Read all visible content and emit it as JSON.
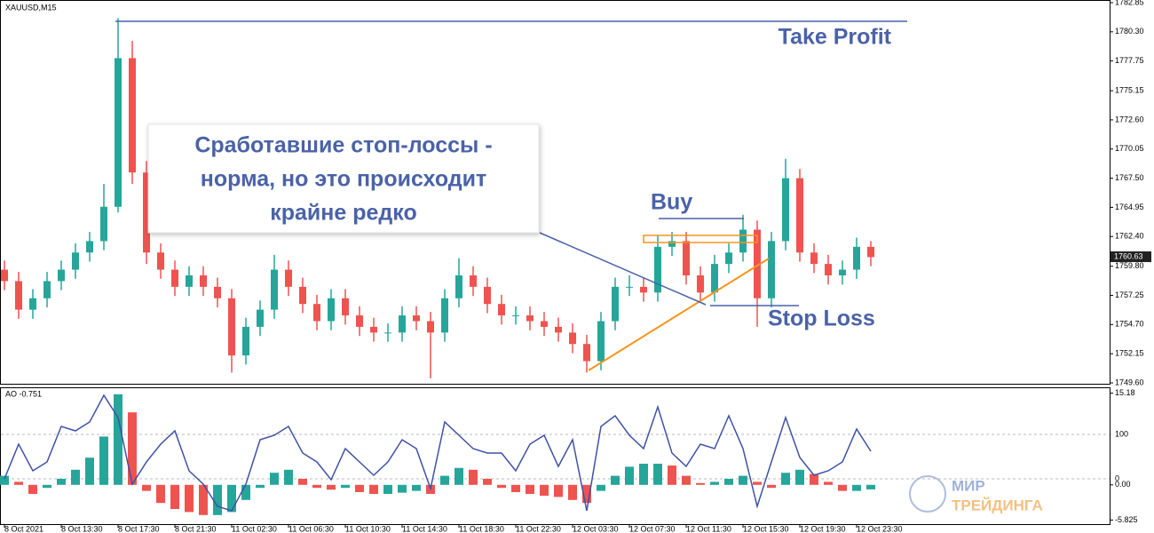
{
  "chart_data": {
    "type": "candlestick",
    "symbol": "XAUUSD,M15",
    "categories": [
      "8 Oct 2021",
      null,
      null,
      null,
      "8 Oct 13:30",
      null,
      null,
      null,
      "8 Oct 17:30",
      null,
      null,
      null,
      "8 Oct 21:30",
      null,
      null,
      null,
      "11 Oct 02:30",
      null,
      null,
      null,
      "11 Oct 06:30",
      null,
      null,
      null,
      "11 Oct 10:30",
      null,
      null,
      null,
      "11 Oct 14:30",
      null,
      null,
      null,
      "11 Oct 18:30",
      null,
      null,
      null,
      "11 Oct 22:30",
      null,
      null,
      null,
      "12 Oct 03:30",
      null,
      null,
      null,
      "12 Oct 07:30",
      null,
      null,
      null,
      "12 Oct 11:30",
      null,
      null,
      null,
      "12 Oct 15:30",
      null,
      null,
      null,
      "12 Oct 19:30",
      null,
      null,
      null,
      "12 Oct 23:30",
      null
    ],
    "open": [
      1759.5,
      1758.5,
      1756,
      1757,
      1758.5,
      1759.5,
      1761,
      1762,
      1765,
      1778,
      1768,
      1761,
      1759.5,
      1758,
      1759,
      1758,
      1757,
      1752,
      1754.5,
      1756,
      1759.5,
      1758,
      1756.5,
      1755,
      1757,
      1755.5,
      1754.5,
      1754,
      1754,
      1755.5,
      1755,
      1754,
      1757,
      1759,
      1758,
      1756.5,
      1755.5,
      1755.5,
      1755,
      1754.5,
      1754,
      1753,
      1751.5,
      1755,
      1758,
      1758,
      1757.5,
      1761.5,
      1762,
      1759,
      1757.5,
      1760,
      1761,
      1763,
      1757,
      1762,
      1767.5,
      1761,
      1760,
      1759,
      1759.5,
      1761.5
    ],
    "high": [
      1760.3,
      1759.3,
      1757.8,
      1759.3,
      1760.3,
      1761.8,
      1762.8,
      1767,
      1781.5,
      1779.5,
      1769,
      1761.8,
      1760.3,
      1759.8,
      1759.8,
      1758.8,
      1757.8,
      1755.3,
      1756.8,
      1760.8,
      1760.3,
      1758.8,
      1757.3,
      1757.8,
      1757.8,
      1756.3,
      1755.3,
      1754.8,
      1756.3,
      1756.3,
      1755.8,
      1757.8,
      1760.5,
      1759.8,
      1758.8,
      1757.3,
      1756.3,
      1756.3,
      1755.8,
      1755.3,
      1754.8,
      1753.8,
      1755.8,
      1758.8,
      1759,
      1758.8,
      1762.5,
      1762.8,
      1762.8,
      1759.8,
      1760.8,
      1761.8,
      1764.3,
      1763.8,
      1762.8,
      1769.2,
      1768.3,
      1761.8,
      1760.8,
      1760.3,
      1762.3,
      1762
    ],
    "low": [
      1757.7,
      1755.2,
      1755.2,
      1756.2,
      1757.7,
      1758.7,
      1760.2,
      1761.2,
      1764.5,
      1767,
      1760,
      1758.7,
      1757.2,
      1757.2,
      1757.2,
      1756.2,
      1750.5,
      1751.2,
      1753.7,
      1755.2,
      1757.2,
      1755.7,
      1754.2,
      1754.2,
      1754.7,
      1753.7,
      1753.2,
      1753.2,
      1753.2,
      1754.2,
      1750,
      1753.2,
      1756.2,
      1757.2,
      1755.7,
      1754.7,
      1754.7,
      1754.2,
      1753.7,
      1753.2,
      1752.2,
      1750.5,
      1750.7,
      1754.2,
      1757.2,
      1756.7,
      1756.7,
      1760.7,
      1758.2,
      1756.7,
      1756.7,
      1759.2,
      1760.2,
      1754.5,
      1756.2,
      1761.2,
      1760.2,
      1759.2,
      1758.2,
      1758.2,
      1758.7,
      1759.8
    ],
    "close": [
      1758.5,
      1756,
      1757,
      1758.5,
      1759.5,
      1761,
      1762,
      1765,
      1778,
      1768,
      1761,
      1759.5,
      1758,
      1759,
      1758,
      1757,
      1752,
      1754.5,
      1756,
      1759.5,
      1758,
      1756.5,
      1755,
      1757,
      1755.5,
      1754.5,
      1754,
      1754,
      1755.5,
      1755,
      1754,
      1757,
      1759,
      1758,
      1756.5,
      1755.5,
      1755.5,
      1755,
      1754.5,
      1754,
      1753,
      1751.5,
      1755,
      1758,
      1758,
      1757.5,
      1761.5,
      1762,
      1759,
      1757.5,
      1760,
      1761,
      1763,
      1757,
      1762,
      1767.5,
      1761,
      1760,
      1759,
      1759.5,
      1761.5,
      1760.6
    ],
    "up_color": "#26a69a",
    "down_color": "#ef5350",
    "ylim": [
      1749.6,
      1782.85
    ],
    "yticks": [
      1782.85,
      {
        "value": 1780.3,
        "label": "1780.30"
      },
      1777.75,
      1775.15,
      {
        "value": 1772.6,
        "label": "1772.60"
      },
      1770.05,
      {
        "value": 1767.5,
        "label": "1767.50"
      },
      1764.95,
      {
        "value": 1762.4,
        "label": "1762.40"
      },
      {
        "value": 1759.8,
        "label": "1759.80"
      },
      1757.25,
      {
        "value": 1754.7,
        "label": "1754.70"
      },
      1752.15,
      {
        "value": 1749.6,
        "label": "1749.60"
      }
    ],
    "last_price": 1760.63,
    "indicator": {
      "type": "bar",
      "label": "AO -0.751",
      "values": [
        1.5,
        0.5,
        -1.5,
        -0.5,
        1,
        2.5,
        4.5,
        8,
        15,
        12,
        -1,
        -3,
        -4,
        -4.5,
        -5,
        -5,
        -4.5,
        -2.5,
        -0.5,
        2,
        2.5,
        1,
        -0.5,
        -0.8,
        -0.5,
        -1.2,
        -1.5,
        -1.5,
        -1.3,
        -1,
        -1.5,
        1.5,
        2.8,
        2.5,
        1,
        -0.5,
        -1.2,
        -1.5,
        -1.8,
        -2,
        -2.5,
        -3,
        -1,
        1.5,
        3,
        3.5,
        3.5,
        3.2,
        1.5,
        0.3,
        0.5,
        1,
        1.5,
        0.5,
        -0.5,
        2,
        2.5,
        1.8,
        0.5,
        -1,
        -1,
        -0.75
      ],
      "ylim": [
        -6.5,
        16
      ],
      "yticks": [
        15.18,
        {
          "value": 0,
          "label": "0.00"
        },
        -5.825
      ],
      "series": [
        {
          "color": "#3f51a5",
          "axis": "y2",
          "values": [
            0,
            78,
            18,
            38,
            118,
            108,
            128,
            188,
            138,
            -12,
            38,
            78,
            108,
            18,
            -12,
            -62,
            -72,
            -12,
            88,
            98,
            118,
            58,
            38,
            -2,
            68,
            38,
            8,
            38,
            88,
            68,
            -22,
            128,
            98,
            68,
            58,
            58,
            18,
            78,
            98,
            28,
            88,
            -72,
            118,
            142,
            98,
            68,
            162,
            58,
            28,
            78,
            68,
            142,
            68,
            -62,
            38,
            138,
            48,
            8,
            18,
            38,
            112,
            62
          ]
        }
      ],
      "y2lim": [
        -102,
        204
      ],
      "y2ticks": [
        100,
        0
      ]
    },
    "annotations": {
      "take_profit": "Take Profit",
      "buy": "Buy",
      "stop_loss": "Stop Loss",
      "callout": [
        "Сработавшие стоп-лоссы -",
        "норма, но это происходит",
        "крайне редко"
      ]
    },
    "logo": [
      "МИР",
      "ТРЕЙДИНГА"
    ]
  }
}
